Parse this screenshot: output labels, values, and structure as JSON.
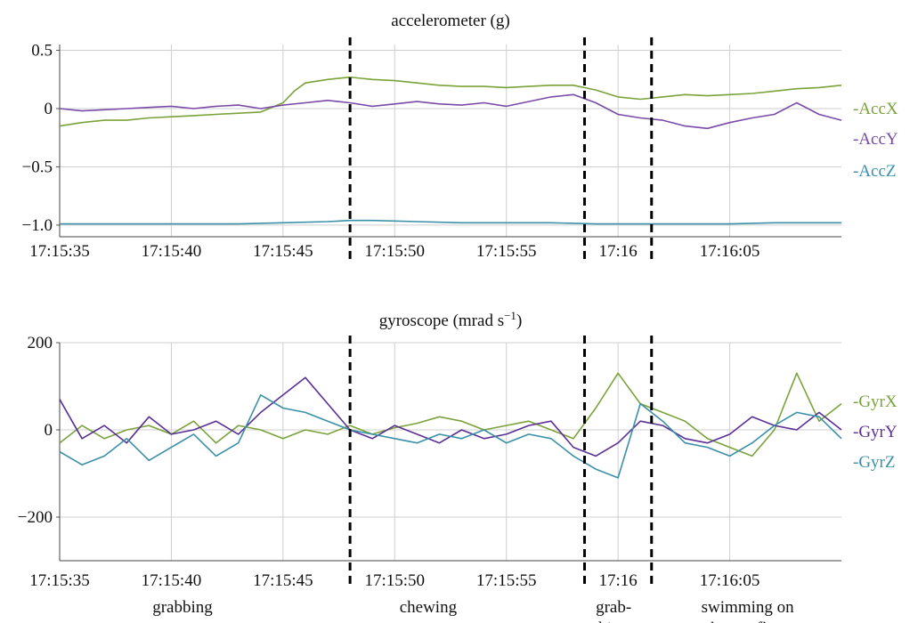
{
  "chart_data": [
    {
      "type": "line",
      "title": "accelerometer (g)",
      "x_tick_labels": [
        "17:15:35",
        "17:15:40",
        "17:15:45",
        "17:15:50",
        "17:15:55",
        "17:16",
        "17:16:05"
      ],
      "x_range_seconds_after_17_15_35": [
        0,
        35
      ],
      "y_ticks": [
        0.5,
        0,
        -0.5,
        -1.0
      ],
      "y_tick_labels": [
        "0.5",
        "0",
        "−0.5",
        "−1.0"
      ],
      "ylim": [
        -1.1,
        0.55
      ],
      "grid": true,
      "legend_position": "right",
      "event_boundaries_seconds": [
        13,
        23.5,
        26.5
      ],
      "series": [
        {
          "name": "AccX",
          "color": "#7aa23a",
          "x": [
            0,
            1,
            2,
            3,
            4,
            5,
            6,
            7,
            8,
            9,
            10,
            10.5,
            11,
            12,
            13,
            13.5,
            14,
            15,
            16,
            17,
            18,
            19,
            20,
            21,
            22,
            23,
            24,
            25,
            26,
            27,
            28,
            29,
            30,
            31,
            32,
            33,
            34,
            35
          ],
          "y": [
            -0.15,
            -0.12,
            -0.1,
            -0.1,
            -0.08,
            -0.07,
            -0.06,
            -0.05,
            -0.04,
            -0.03,
            0.05,
            0.15,
            0.22,
            0.25,
            0.27,
            0.26,
            0.25,
            0.24,
            0.22,
            0.2,
            0.19,
            0.19,
            0.18,
            0.19,
            0.2,
            0.2,
            0.16,
            0.1,
            0.08,
            0.1,
            0.12,
            0.11,
            0.12,
            0.13,
            0.15,
            0.17,
            0.18,
            0.2
          ]
        },
        {
          "name": "AccY",
          "color": "#7a4aa8",
          "x": [
            0,
            1,
            2,
            3,
            4,
            5,
            6,
            7,
            8,
            9,
            10,
            11,
            12,
            13,
            14,
            15,
            16,
            17,
            18,
            19,
            20,
            21,
            22,
            23,
            24,
            25,
            26,
            27,
            28,
            29,
            30,
            31,
            32,
            33,
            34,
            35
          ],
          "y": [
            0.0,
            -0.02,
            -0.01,
            0.0,
            0.01,
            0.02,
            0.0,
            0.02,
            0.03,
            0.0,
            0.03,
            0.05,
            0.07,
            0.05,
            0.02,
            0.04,
            0.06,
            0.04,
            0.03,
            0.05,
            0.02,
            0.06,
            0.1,
            0.12,
            0.05,
            -0.05,
            -0.08,
            -0.1,
            -0.15,
            -0.17,
            -0.12,
            -0.08,
            -0.05,
            0.05,
            -0.05,
            -0.1
          ]
        },
        {
          "name": "AccZ",
          "color": "#3a90a8",
          "x": [
            0,
            2,
            4,
            6,
            8,
            10,
            12,
            13,
            14,
            16,
            18,
            20,
            22,
            24,
            26,
            28,
            30,
            32,
            34,
            35
          ],
          "y": [
            -0.99,
            -0.99,
            -0.99,
            -0.99,
            -0.99,
            -0.98,
            -0.97,
            -0.96,
            -0.96,
            -0.97,
            -0.98,
            -0.98,
            -0.98,
            -0.99,
            -0.99,
            -0.99,
            -0.99,
            -0.98,
            -0.98,
            -0.98
          ]
        }
      ]
    },
    {
      "type": "line",
      "title": "gyroscope (mrad s",
      "title_superscript": "−1",
      "title_close": ")",
      "x_tick_labels": [
        "17:15:35",
        "17:15:40",
        "17:15:45",
        "17:15:50",
        "17:15:55",
        "17:16",
        "17:16:05"
      ],
      "x_range_seconds_after_17_15_35": [
        0,
        35
      ],
      "y_ticks": [
        200,
        0,
        -200
      ],
      "y_tick_labels": [
        "200",
        "0",
        "−200"
      ],
      "ylim": [
        -300,
        200
      ],
      "grid": true,
      "legend_position": "right",
      "event_boundaries_seconds": [
        13,
        23.5,
        26.5
      ],
      "events": [
        {
          "label_lines": [
            "grabbing"
          ],
          "center_seconds": 5.5
        },
        {
          "label_lines": [
            "chewing"
          ],
          "center_seconds": 16.5
        },
        {
          "label_lines": [
            "grab-",
            "bing"
          ],
          "center_seconds": 24.8
        },
        {
          "label_lines": [
            "swimming on",
            "the sea floor"
          ],
          "center_seconds": 30.8
        }
      ],
      "series": [
        {
          "name": "GyrX",
          "color": "#7aa23a",
          "x": [
            0,
            1,
            2,
            3,
            4,
            5,
            6,
            7,
            8,
            9,
            10,
            11,
            12,
            13,
            14,
            15,
            16,
            17,
            18,
            19,
            20,
            21,
            22,
            23,
            24,
            25,
            26,
            27,
            28,
            29,
            30,
            31,
            32,
            33,
            34,
            35
          ],
          "y": [
            -30,
            10,
            -20,
            0,
            10,
            -10,
            20,
            -30,
            10,
            0,
            -20,
            0,
            -10,
            10,
            -10,
            5,
            15,
            30,
            20,
            0,
            10,
            20,
            0,
            -20,
            50,
            130,
            60,
            40,
            20,
            -20,
            -40,
            -60,
            0,
            130,
            20,
            60
          ]
        },
        {
          "name": "GyrY",
          "color": "#5a2f96",
          "x": [
            0,
            1,
            2,
            3,
            4,
            5,
            6,
            7,
            8,
            9,
            10,
            11,
            12,
            13,
            14,
            15,
            16,
            17,
            18,
            19,
            20,
            21,
            22,
            23,
            24,
            25,
            26,
            27,
            28,
            29,
            30,
            31,
            32,
            33,
            34,
            35
          ],
          "y": [
            70,
            -20,
            10,
            -30,
            30,
            -10,
            0,
            20,
            -10,
            40,
            80,
            120,
            60,
            0,
            -20,
            10,
            -10,
            -30,
            0,
            -20,
            -10,
            10,
            20,
            -40,
            -60,
            -30,
            20,
            10,
            -20,
            -30,
            -10,
            30,
            10,
            0,
            40,
            0
          ]
        },
        {
          "name": "GyrZ",
          "color": "#3a90a8",
          "x": [
            0,
            1,
            2,
            3,
            4,
            5,
            6,
            7,
            8,
            9,
            10,
            11,
            12,
            13,
            14,
            15,
            16,
            17,
            18,
            19,
            20,
            21,
            22,
            23,
            24,
            25,
            26,
            27,
            28,
            29,
            30,
            31,
            32,
            33,
            34,
            35
          ],
          "y": [
            -50,
            -80,
            -60,
            -20,
            -70,
            -40,
            -10,
            -60,
            -30,
            80,
            50,
            40,
            20,
            0,
            -10,
            -20,
            -30,
            -10,
            -20,
            0,
            -30,
            -10,
            -20,
            -60,
            -90,
            -110,
            60,
            20,
            -30,
            -40,
            -60,
            -30,
            10,
            40,
            30,
            -20
          ]
        }
      ]
    }
  ]
}
